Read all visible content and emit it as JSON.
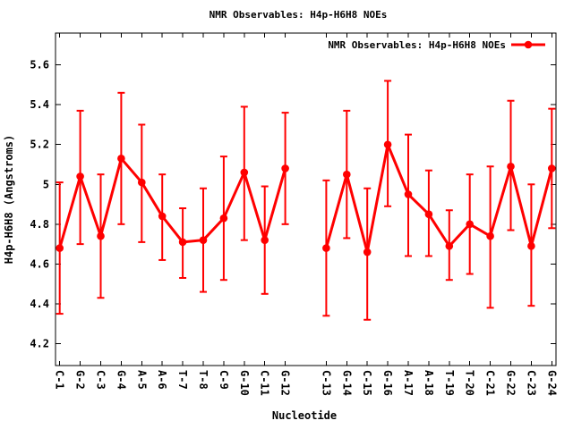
{
  "window": {
    "background": "#ffffff"
  },
  "chart_data": {
    "type": "line",
    "title": "NMR Observables: H4p-H6H8 NOEs",
    "xlabel": "Nucleotide",
    "ylabel": "H4p-H6H8 (Angstroms)",
    "axis_color": "#000000",
    "series_color": "#ff0000",
    "grid": false,
    "legend": {
      "label": "NMR Observables: H4p-H6H8 NOEs",
      "position": "top-right-inside",
      "marker": "filled-circle-with-line"
    },
    "ylim": [
      4.09,
      5.76
    ],
    "ytick_labels": [
      "4.2",
      "4.4",
      "4.6",
      "4.8",
      "5",
      "5.2",
      "5.4",
      "5.6"
    ],
    "ytick_values": [
      4.2,
      4.4,
      4.6,
      4.8,
      5.0,
      5.2,
      5.4,
      5.6
    ],
    "categories": [
      "C-1",
      "G-2",
      "C-3",
      "G-4",
      "A-5",
      "A-6",
      "T-7",
      "T-8",
      "C-9",
      "G-10",
      "C-11",
      "G-12",
      "C-13",
      "G-14",
      "C-15",
      "G-16",
      "A-17",
      "A-18",
      "T-19",
      "T-20",
      "C-21",
      "G-22",
      "C-23",
      "G-24"
    ],
    "gap_after": "G-12",
    "series": [
      {
        "name": "NMR Observables: H4p-H6H8 NOEs",
        "style": "line-with-errorbars",
        "values": [
          4.68,
          5.04,
          4.74,
          5.13,
          5.01,
          4.84,
          4.71,
          4.72,
          4.83,
          5.06,
          4.72,
          5.08,
          4.68,
          5.05,
          4.66,
          5.2,
          4.95,
          4.85,
          4.69,
          4.8,
          4.74,
          5.09,
          4.69,
          5.08
        ],
        "err_low": [
          4.35,
          4.7,
          4.43,
          4.8,
          4.71,
          4.62,
          4.53,
          4.46,
          4.52,
          4.72,
          4.45,
          4.8,
          4.34,
          4.73,
          4.32,
          4.89,
          4.64,
          4.64,
          4.52,
          4.55,
          4.38,
          4.77,
          4.39,
          4.78
        ],
        "err_high": [
          5.01,
          5.37,
          5.05,
          5.46,
          5.3,
          5.05,
          4.88,
          4.98,
          5.14,
          5.39,
          4.99,
          5.36,
          5.02,
          5.37,
          4.98,
          5.52,
          5.25,
          5.07,
          4.87,
          5.05,
          5.09,
          5.42,
          5.0,
          5.38
        ]
      }
    ]
  }
}
